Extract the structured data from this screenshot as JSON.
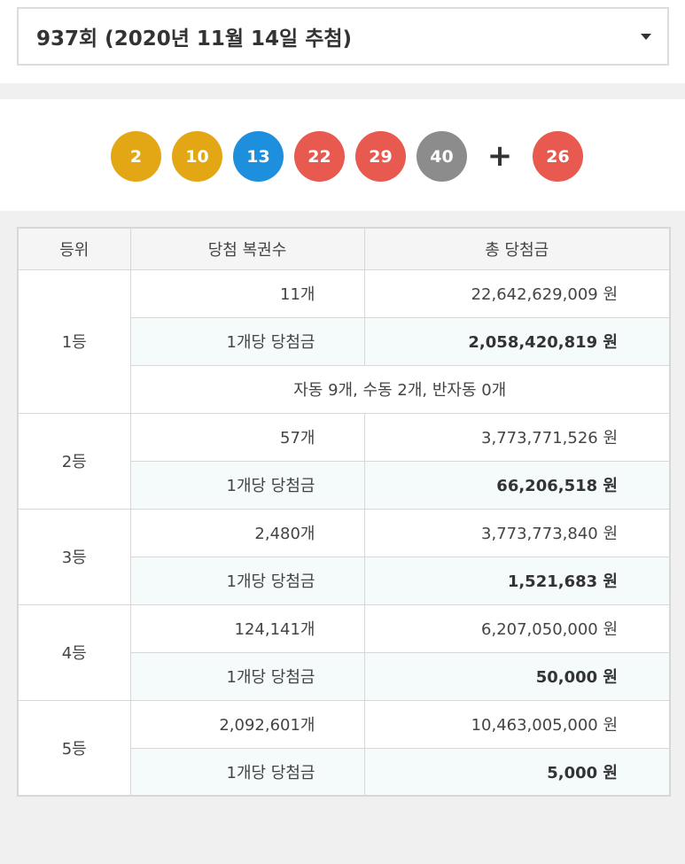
{
  "draw_select": {
    "label": "937회 (2020년 11월 14일 추첨)"
  },
  "balls": [
    {
      "number": "2",
      "color": "#e3a614"
    },
    {
      "number": "10",
      "color": "#e3a614"
    },
    {
      "number": "13",
      "color": "#1e8fdc"
    },
    {
      "number": "22",
      "color": "#e85a4f"
    },
    {
      "number": "29",
      "color": "#e85a4f"
    },
    {
      "number": "40",
      "color": "#8c8c8c"
    }
  ],
  "plus": "+",
  "bonus": {
    "number": "26",
    "color": "#e85a4f"
  },
  "table": {
    "headers": {
      "rank": "등위",
      "count": "당첨 복권수",
      "total": "총 당첨금"
    },
    "per_label": "1개당 당첨금",
    "rows": [
      {
        "rank": "1등",
        "count": "11개",
        "total": "22,642,629,009 원",
        "per": "2,058,420,819 원",
        "method": "자동 9개, 수동 2개, 반자동 0개"
      },
      {
        "rank": "2등",
        "count": "57개",
        "total": "3,773,771,526 원",
        "per": "66,206,518 원"
      },
      {
        "rank": "3등",
        "count": "2,480개",
        "total": "3,773,773,840 원",
        "per": "1,521,683 원"
      },
      {
        "rank": "4등",
        "count": "124,141개",
        "total": "6,207,050,000 원",
        "per": "50,000 원"
      },
      {
        "rank": "5등",
        "count": "2,092,601개",
        "total": "10,463,005,000 원",
        "per": "5,000 원"
      }
    ]
  }
}
